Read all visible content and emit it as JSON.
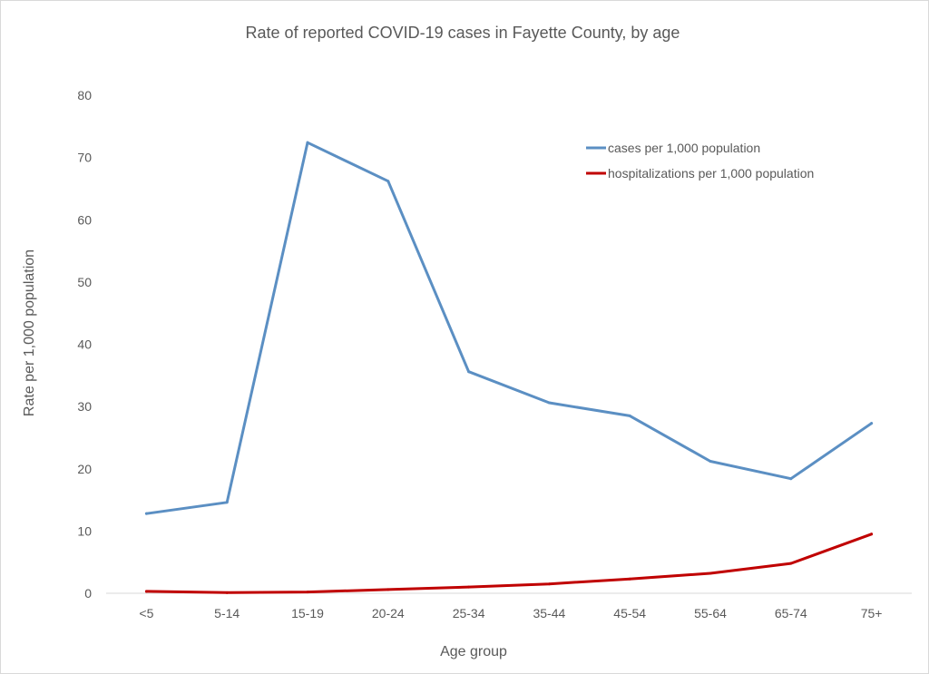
{
  "chart_data": {
    "type": "line",
    "title": "Rate of reported COVID-19 cases in Fayette County, by age",
    "xlabel": "Age group",
    "ylabel": "Rate per 1,000 population",
    "categories": [
      "<5",
      "5-14",
      "15-19",
      "20-24",
      "25-34",
      "35-44",
      "45-54",
      "55-64",
      "65-74",
      "75+"
    ],
    "ylim": [
      0,
      80
    ],
    "yticks": [
      0,
      10,
      20,
      30,
      40,
      50,
      60,
      70,
      80
    ],
    "grid": false,
    "legend_position": "top-right",
    "series": [
      {
        "name": "cases per 1,000 population",
        "color": "#5b8fc3",
        "values": [
          12.8,
          14.6,
          72.4,
          66.2,
          35.6,
          30.6,
          28.5,
          21.2,
          18.4,
          27.3
        ]
      },
      {
        "name": "hospitalizations per 1,000 population",
        "color": "#c00000",
        "values": [
          0.3,
          0.1,
          0.2,
          0.6,
          1.0,
          1.5,
          2.3,
          3.2,
          4.8,
          9.5
        ]
      }
    ]
  }
}
